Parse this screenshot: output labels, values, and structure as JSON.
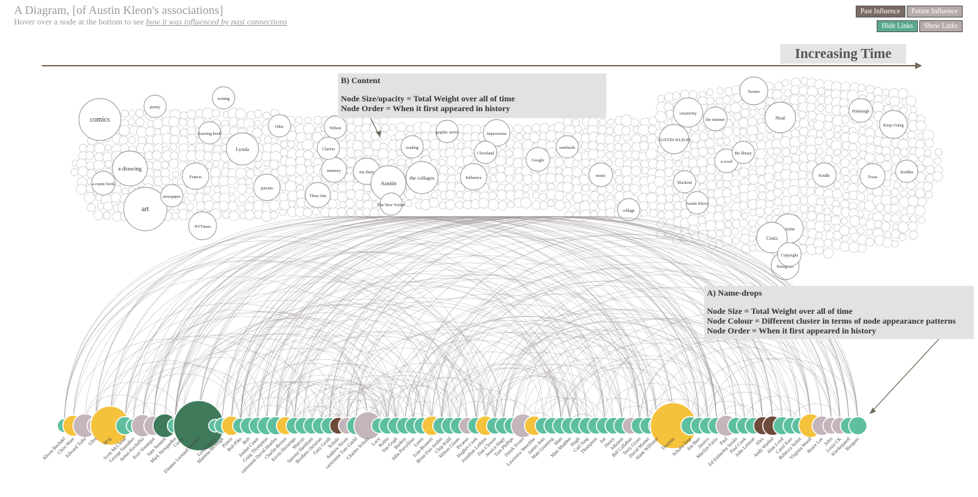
{
  "header": {
    "title": "A Diagram, [of Austin Kleon's associations]",
    "subtitle_prefix": "Hover over a node at the bottom to see ",
    "subtitle_link": "how it was influenced by past connections"
  },
  "controls": {
    "past_influence": "Past Influence",
    "future_influence": "Future Influence",
    "hide_links": "Hide Links",
    "show_links": "Show Links"
  },
  "timeline": {
    "label": "Increasing Time"
  },
  "annotations": {
    "content": {
      "title": "B) Content",
      "line1": "Node Size/opacity = Total Weight over all of time",
      "line2": "Node Order = When it first appeared in history"
    },
    "namedrops": {
      "title": "A) Name-drops",
      "line1": "Node Size = Total Weight over all of time",
      "line2": "Node Colour = Different cluster in terms of node appearance patterns",
      "line3": "Node Order = When it first appeared in history"
    }
  },
  "colors": {
    "teal": "#5dbf9f",
    "yellow": "#f5c23c",
    "mauve": "#c4b4bb",
    "dark_green": "#3f7a5b",
    "brown": "#6e4a3a",
    "link": "#9a9090",
    "arrow": "#6b6b5a"
  },
  "content_words": [
    "comics",
    "a drawing",
    "art",
    "Lynda",
    "NYTimes",
    "Francis",
    "parents",
    "Three Jets",
    "memory",
    "my diary",
    "Austin",
    "The New Yorker",
    "the collages",
    "Influence",
    "impressions",
    "AUSTIN KLEON",
    "creativity",
    "Twitter",
    "Steal",
    "Keep Going",
    "Texas",
    "SXSW",
    "Costa",
    "Instagram",
    "Copyright",
    "poetry",
    "writing",
    "a comic book",
    "Wilson",
    "notebook",
    "Google",
    "the internet",
    "blackout",
    "Kindle",
    "collage",
    "music",
    "drawing book",
    "Clarion",
    "Cleveland",
    "Pittsburgh",
    "doodles",
    "newspaper",
    "Ohio",
    "graphic novel",
    "reading",
    "a word",
    "Austin Kleon",
    "the library"
  ],
  "namedrops": [
    {
      "label": "Alison Bechdel",
      "color": "teal",
      "size": 10
    },
    {
      "label": "Chris Ware",
      "color": "yellow",
      "size": 15
    },
    {
      "label": "Edward Tufte",
      "color": "mauve",
      "size": 17
    },
    {
      "label": "Glen",
      "color": "mauve",
      "size": 12
    },
    {
      "label": "Mcg",
      "color": "yellow",
      "size": 28
    },
    {
      "label": "Scott McCloud",
      "color": "teal",
      "size": 13
    },
    {
      "label": "George Saunders",
      "color": "teal",
      "size": 10
    },
    {
      "label": "James Kochalka",
      "color": "mauve",
      "size": 16
    },
    {
      "label": "Kurt Vonnegut",
      "color": "mauve",
      "size": 14
    },
    {
      "label": "Sam Sennett",
      "color": "dark_green",
      "size": 17
    },
    {
      "label": "Mark Newgarden",
      "color": "teal",
      "size": 11
    },
    {
      "label": "Corey",
      "color": "teal",
      "size": 9
    },
    {
      "label": "Eleanor Leonard Pennell",
      "color": "dark_green",
      "size": 36
    },
    {
      "label": "Lynda Barry",
      "color": "teal",
      "size": 9
    },
    {
      "label": "Mamma McHugh",
      "color": "teal",
      "size": 11
    },
    {
      "label": "Prince",
      "color": "yellow",
      "size": 14
    },
    {
      "label": "Bob Pike",
      "color": "teal",
      "size": 11
    },
    {
      "label": "Bob",
      "color": "teal",
      "size": 12
    },
    {
      "label": "Jordan Crane",
      "color": "teal",
      "size": 12
    },
    {
      "label": "Craig Thompson",
      "color": "teal",
      "size": 13
    },
    {
      "label": "cartoonist David Heatley",
      "color": "teal",
      "size": 13
    },
    {
      "label": "Charlie Brown",
      "color": "yellow",
      "size": 13
    },
    {
      "label": "Kevin Huizenga",
      "color": "teal",
      "size": 12
    },
    {
      "label": "Marcus",
      "color": "teal",
      "size": 12
    },
    {
      "label": "Sammy Harkham",
      "color": "teal",
      "size": 12
    },
    {
      "label": "Brothers christian",
      "color": "teal",
      "size": 12
    },
    {
      "label": "Gary Groth",
      "color": "teal",
      "size": 12
    },
    {
      "label": "Schulz",
      "color": "brown",
      "size": 12
    },
    {
      "label": "Andrew Nicen",
      "color": "mauve",
      "size": 12
    },
    {
      "label": "cartoonist Tom Gauld",
      "color": "teal",
      "size": 13
    },
    {
      "label": "Charles Schulz",
      "color": "mauve",
      "size": 20
    },
    {
      "label": "Lucy",
      "color": "teal",
      "size": 11
    },
    {
      "label": "Robin",
      "color": "teal",
      "size": 12
    },
    {
      "label": "Van Gogh",
      "color": "teal",
      "size": 12
    },
    {
      "label": "Banksy",
      "color": "teal",
      "size": 12
    },
    {
      "label": "John Porcellino",
      "color": "teal",
      "size": 12
    },
    {
      "label": "Lenin",
      "color": "teal",
      "size": 12
    },
    {
      "label": "Ivan Brunetti",
      "color": "yellow",
      "size": 14
    },
    {
      "label": "Brian Fies Jordan",
      "color": "teal",
      "size": 12
    },
    {
      "label": "Chip Kidd",
      "color": "teal",
      "size": 12
    },
    {
      "label": "Milton Glaser",
      "color": "teal",
      "size": 12
    },
    {
      "label": "Picasso",
      "color": "mauve",
      "size": 12
    },
    {
      "label": "Hughes Cook",
      "color": "teal",
      "size": 12
    },
    {
      "label": "Jonathan Lethem",
      "color": "yellow",
      "size": 14
    },
    {
      "label": "Dan Clowes",
      "color": "teal",
      "size": 12
    },
    {
      "label": "Jessica Hagy",
      "color": "teal",
      "size": 12
    },
    {
      "label": "Tom Phillips",
      "color": "teal",
      "size": 12
    },
    {
      "label": "Derek Sivers",
      "color": "mauve",
      "size": 17
    },
    {
      "label": "Lawrence Weschler",
      "color": "yellow",
      "size": 14
    },
    {
      "label": "James Jean",
      "color": "teal",
      "size": 12
    },
    {
      "label": "Matt Groening",
      "color": "teal",
      "size": 12
    },
    {
      "label": "Matt",
      "color": "teal",
      "size": 12
    },
    {
      "label": "Matt Madden",
      "color": "teal",
      "size": 12
    },
    {
      "label": "Hugh",
      "color": "teal",
      "size": 12
    },
    {
      "label": "Carl Jung",
      "color": "teal",
      "size": 12
    },
    {
      "label": "Thompson",
      "color": "teal",
      "size": 12
    },
    {
      "label": "Joe",
      "color": "teal",
      "size": 12
    },
    {
      "label": "Henry",
      "color": "teal",
      "size": 12
    },
    {
      "label": "Johnson",
      "color": "teal",
      "size": 12
    },
    {
      "label": "Bill Callahan",
      "color": "mauve",
      "size": 12
    },
    {
      "label": "Terry Gross",
      "color": "teal",
      "size": 12
    },
    {
      "label": "David Mamet",
      "color": "teal",
      "size": 12
    },
    {
      "label": "Hank Williams",
      "color": "teal",
      "size": 12
    },
    {
      "label": "Thoreau",
      "color": "yellow",
      "size": 33
    },
    {
      "label": "Schultz loop",
      "color": "teal",
      "size": 13
    },
    {
      "label": "Jon Barr",
      "color": "teal",
      "size": 12
    },
    {
      "label": "Jessica",
      "color": "teal",
      "size": 12
    },
    {
      "label": "Marilyn Fazio",
      "color": "teal",
      "size": 12
    },
    {
      "label": "Paul",
      "color": "mauve",
      "size": 15
    },
    {
      "label": "Ed Emberley books",
      "color": "teal",
      "size": 12
    },
    {
      "label": "Paul Cook",
      "color": "teal",
      "size": 12
    },
    {
      "label": "John Lennon",
      "color": "teal",
      "size": 12
    },
    {
      "label": "Alex",
      "color": "brown",
      "size": 13
    },
    {
      "label": "Andy Warhol",
      "color": "brown",
      "size": 14
    },
    {
      "label": "Alan Loyd",
      "color": "teal",
      "size": 13
    },
    {
      "label": "Carol Kerr",
      "color": "teal",
      "size": 12
    },
    {
      "label": "Rebecca Solnit",
      "color": "teal",
      "size": 12
    },
    {
      "label": "Virginia Woolf",
      "color": "yellow",
      "size": 17
    },
    {
      "label": "Bruce Lee",
      "color": "mauve",
      "size": 14
    },
    {
      "label": "Jules",
      "color": "mauve",
      "size": 12
    },
    {
      "label": "Louis CK",
      "color": "mauve",
      "size": 12
    },
    {
      "label": "Kierkegaard",
      "color": "teal",
      "size": 12
    },
    {
      "label": "Bouguer",
      "color": "teal",
      "size": 13
    }
  ]
}
